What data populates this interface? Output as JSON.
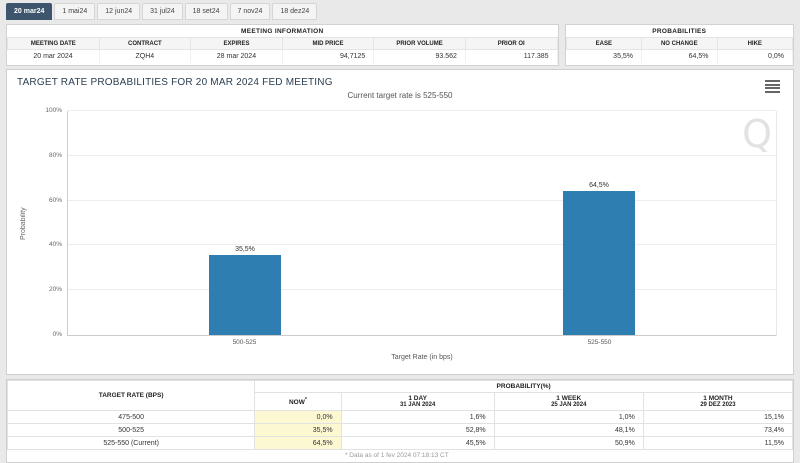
{
  "tabs": [
    {
      "label": "20 mar24",
      "active": true
    },
    {
      "label": "1 mai24"
    },
    {
      "label": "12 jun24"
    },
    {
      "label": "31 jul24"
    },
    {
      "label": "18 set24"
    },
    {
      "label": "7 nov24"
    },
    {
      "label": "18 dez24"
    }
  ],
  "meeting_info": {
    "title": "MEETING INFORMATION",
    "columns": [
      "MEETING DATE",
      "CONTRACT",
      "EXPIRES",
      "MID PRICE",
      "PRIOR VOLUME",
      "PRIOR OI"
    ],
    "values": [
      "20 mar 2024",
      "ZQH4",
      "28 mar 2024",
      "94,7125",
      "93.562",
      "117.385"
    ]
  },
  "probabilities_panel": {
    "title": "PROBABILITIES",
    "columns": [
      "EASE",
      "NO CHANGE",
      "HIKE"
    ],
    "values": [
      "35,5%",
      "64,5%",
      "0,0%"
    ]
  },
  "chart_data": {
    "type": "bar",
    "title": "TARGET RATE PROBABILITIES FOR 20 MAR 2024 FED MEETING",
    "subtitle": "Current target rate is 525-550",
    "categories": [
      "500-525",
      "525-550"
    ],
    "values": [
      35.5,
      64.5
    ],
    "value_labels": [
      "35,5%",
      "64,5%"
    ],
    "xlabel": "Target Rate (in bps)",
    "ylabel": "Probability",
    "ylim": [
      0,
      100
    ],
    "yticks": [
      "0%",
      "20%",
      "40%",
      "60%",
      "80%",
      "100%"
    ],
    "bar_color": "#2f7eb1",
    "grid": true,
    "legend": "none"
  },
  "watermark": "Q",
  "prob_table": {
    "col_target": "TARGET RATE (BPS)",
    "col_probability": "PROBABILITY(%)",
    "now_label": "NOW",
    "now_sup": "*",
    "cols": [
      {
        "label": "1 DAY",
        "date": "31 JAN 2024"
      },
      {
        "label": "1 WEEK",
        "date": "25 JAN 2024"
      },
      {
        "label": "1 MONTH",
        "date": "29 DEZ 2023"
      }
    ],
    "rows": [
      {
        "target": "475-500",
        "now": "0,0%",
        "d1": "1,6%",
        "w1": "1,0%",
        "m1": "15,1%"
      },
      {
        "target": "500-525",
        "now": "35,5%",
        "d1": "52,8%",
        "w1": "48,1%",
        "m1": "73,4%"
      },
      {
        "target": "525-550 (Current)",
        "now": "64,5%",
        "d1": "45,5%",
        "w1": "50,9%",
        "m1": "11,5%"
      }
    ],
    "footnote": "* Data as of 1 fev 2024 07:18:13 CT"
  },
  "colors": {
    "accent_tab": "#3d566e",
    "bar": "#2f7eb1",
    "now_highlight": "#fbf8d2"
  }
}
